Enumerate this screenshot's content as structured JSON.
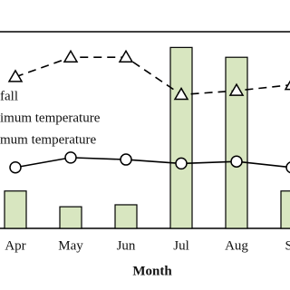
{
  "chart_data": {
    "type": "bar",
    "x_label": "Month",
    "categories": [
      "Apr",
      "May",
      "Jun",
      "Jul",
      "Aug",
      "Se"
    ],
    "ylim": [
      0,
      100
    ],
    "series": [
      {
        "name": "fall",
        "type": "bar",
        "color": "#d8e6c0",
        "values": [
          19,
          11,
          12,
          92,
          87,
          19
        ]
      },
      {
        "name": "imum temperature",
        "type": "line",
        "color": "#000000",
        "marker": "triangle",
        "dashed": true,
        "values": [
          77,
          87,
          87,
          68,
          70,
          73
        ]
      },
      {
        "name": "mum temperature",
        "type": "line",
        "color": "#000000",
        "marker": "circle",
        "dashed": false,
        "values": [
          31,
          36,
          35,
          33,
          34,
          31
        ]
      }
    ]
  }
}
